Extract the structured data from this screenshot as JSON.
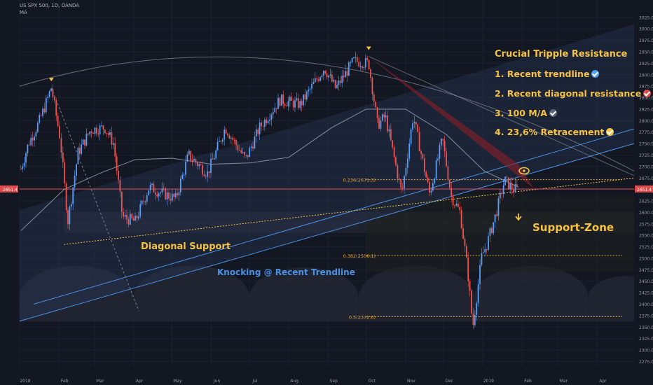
{
  "header": {
    "symbol": "US SPX 500, 1D, OANDA",
    "indicator": "MA"
  },
  "annotations": {
    "list_title": "Crucial Tripple Resistance",
    "list": [
      {
        "text": "1. Recent trendline",
        "check_color": "#4ea3f1"
      },
      {
        "text": "2. Recent diagonal resistance",
        "check_color": "#e04a4a"
      },
      {
        "text": "3. 100 M/A",
        "check_color": "#5a6275"
      },
      {
        "text": "4. 23,6% Retracement",
        "check_color": "#f5c242"
      }
    ],
    "support_zone": "Support-Zone",
    "diagonal_support": "Diagonal Support",
    "knocking": "Knocking @ Recent Trendline"
  },
  "colors": {
    "background": "#131722",
    "up_candle": "#5b9cf6",
    "down_candle": "#ef5350",
    "annotation": "#f5c242",
    "trendline": "#4a90e2",
    "fib": "#e8a93a",
    "price_line": "#e04a4a"
  },
  "chart_data": {
    "type": "candlestick",
    "title": "",
    "xlabel": "",
    "ylabel": "",
    "ylim": [
      2265,
      3040
    ],
    "x_tick_labels": [
      "2018",
      "Feb",
      "Mar",
      "Apr",
      "May",
      "Jun",
      "Jul",
      "Aug",
      "Sep",
      "Oct",
      "Nov",
      "Dec",
      "2019",
      "Feb",
      "Mar",
      "Apr"
    ],
    "y_tick_values": [
      2275,
      2300,
      2325,
      2350,
      2375,
      2400,
      2425,
      2450,
      2475,
      2500,
      2525,
      2550,
      2575,
      2600,
      2625,
      2650,
      2675,
      2700,
      2725,
      2750,
      2775,
      2800,
      2825,
      2850,
      2875,
      2900,
      2925,
      2950,
      2975,
      3000,
      3025
    ],
    "current_price_label": "2651.4",
    "current_price": 2651,
    "fib_levels": [
      {
        "label": "0.236(2671.3)",
        "value": 2671.3
      },
      {
        "label": "0.382(2506.1)",
        "value": 2506.1
      },
      {
        "label": "0.5(2372.6)",
        "value": 2372.6
      }
    ],
    "close_path": [
      [
        "2018-01-02",
        2695
      ],
      [
        "2018-01-08",
        2750
      ],
      [
        "2018-01-16",
        2795
      ],
      [
        "2018-01-22",
        2840
      ],
      [
        "2018-01-26",
        2872
      ],
      [
        "2018-02-02",
        2760
      ],
      [
        "2018-02-08",
        2580
      ],
      [
        "2018-02-16",
        2730
      ],
      [
        "2018-02-26",
        2780
      ],
      [
        "2018-03-09",
        2785
      ],
      [
        "2018-03-16",
        2750
      ],
      [
        "2018-03-23",
        2590
      ],
      [
        "2018-04-02",
        2580
      ],
      [
        "2018-04-13",
        2655
      ],
      [
        "2018-04-25",
        2640
      ],
      [
        "2018-05-04",
        2630
      ],
      [
        "2018-05-14",
        2725
      ],
      [
        "2018-05-29",
        2685
      ],
      [
        "2018-06-12",
        2785
      ],
      [
        "2018-06-28",
        2715
      ],
      [
        "2018-07-09",
        2785
      ],
      [
        "2018-07-25",
        2845
      ],
      [
        "2018-08-10",
        2835
      ],
      [
        "2018-08-29",
        2915
      ],
      [
        "2018-09-07",
        2870
      ],
      [
        "2018-09-21",
        2930
      ],
      [
        "2018-10-03",
        2925
      ],
      [
        "2018-10-10",
        2790
      ],
      [
        "2018-10-16",
        2810
      ],
      [
        "2018-10-29",
        2640
      ],
      [
        "2018-11-07",
        2810
      ],
      [
        "2018-11-20",
        2640
      ],
      [
        "2018-11-30",
        2760
      ],
      [
        "2018-12-07",
        2635
      ],
      [
        "2018-12-14",
        2600
      ],
      [
        "2018-12-20",
        2470
      ],
      [
        "2018-12-24",
        2350
      ],
      [
        "2018-12-31",
        2505
      ],
      [
        "2019-01-04",
        2530
      ],
      [
        "2019-01-11",
        2595
      ],
      [
        "2019-01-18",
        2670
      ],
      [
        "2019-01-25",
        2650
      ],
      [
        "2019-01-29",
        2651
      ]
    ],
    "moving_average_100": [
      [
        "2018-01-02",
        2560
      ],
      [
        "2018-02-05",
        2650
      ],
      [
        "2018-03-05",
        2685
      ],
      [
        "2018-04-02",
        2715
      ],
      [
        "2018-05-01",
        2718
      ],
      [
        "2018-06-01",
        2705
      ],
      [
        "2018-07-02",
        2708
      ],
      [
        "2018-08-01",
        2720
      ],
      [
        "2018-09-04",
        2785
      ],
      [
        "2018-10-01",
        2825
      ],
      [
        "2018-11-01",
        2825
      ],
      [
        "2018-12-03",
        2770
      ],
      [
        "2019-01-02",
        2690
      ],
      [
        "2019-01-29",
        2655
      ]
    ],
    "pivot_markers": [
      {
        "date": "2018-01-26",
        "price": 2872
      },
      {
        "date": "2018-10-03",
        "price": 2940
      }
    ],
    "lines": [
      {
        "name": "recent-trendline",
        "from": [
          "2018-01-01",
          2363
        ],
        "to": [
          "2019-04-30",
          2750
        ]
      },
      {
        "name": "diagonal-support",
        "from": [
          "2018-02-05",
          2530
        ],
        "to": [
          "2019-04-30",
          2675
        ]
      },
      {
        "name": "diagonal-resistance",
        "from": [
          "2018-10-03",
          2940
        ],
        "to": [
          "2019-01-29",
          2680
        ]
      }
    ],
    "support_zone": [
      2555,
      2600
    ]
  }
}
